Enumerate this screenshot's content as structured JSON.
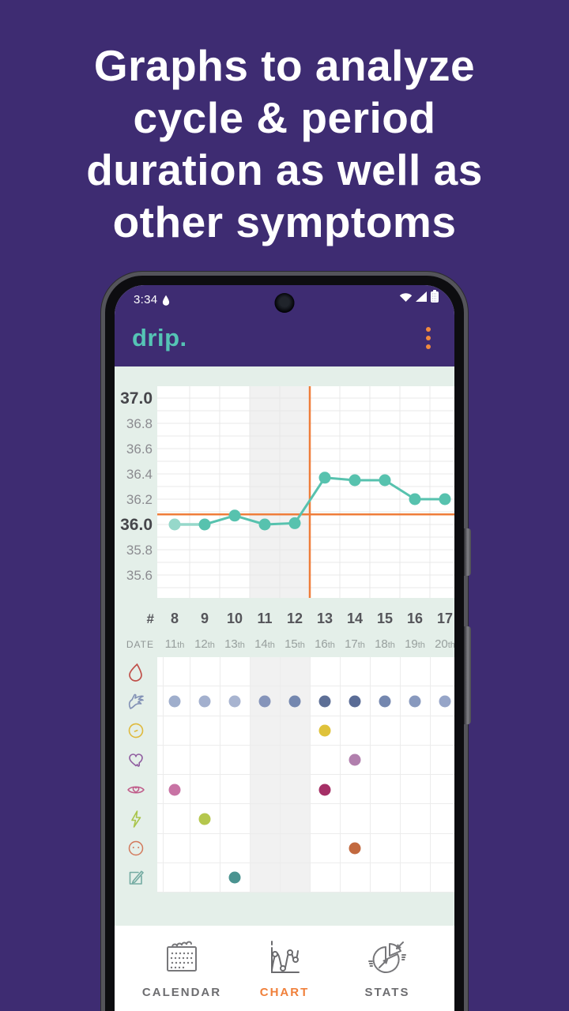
{
  "colors": {
    "background_purple": "#3E2C72",
    "accent_teal": "#55C4B5",
    "accent_orange": "#F0803B",
    "screen_mint": "#E4EFE9"
  },
  "headline": {
    "lines": [
      "Graphs to analyze",
      "cycle & period",
      "duration as well as",
      "other symptoms"
    ]
  },
  "status_bar": {
    "time": "3:34",
    "icons": [
      "notification-drop-icon",
      "wifi-icon",
      "cellular-signal-icon",
      "battery-icon"
    ]
  },
  "app_bar": {
    "title": "drip.",
    "menu_icon": "kebab-menu-icon"
  },
  "chart_data": {
    "type": "line",
    "x": [
      8,
      9,
      10,
      11,
      12,
      13,
      14,
      15,
      16,
      17
    ],
    "x_number_label": "#",
    "x_date_label": "DATE",
    "x_dates": [
      "11th",
      "12th",
      "13th",
      "14th",
      "15th",
      "16th",
      "17th",
      "18th",
      "19th",
      "20th"
    ],
    "series": [
      {
        "name": "temperature",
        "color": "#57C2AE",
        "faded_color": "#96D8CA",
        "values": [
          36.0,
          36.0,
          36.07,
          36.0,
          36.01,
          36.37,
          36.35,
          36.35,
          36.2,
          36.2
        ]
      }
    ],
    "yticks": [
      37.0,
      36.8,
      36.6,
      36.4,
      36.2,
      36.0,
      35.8,
      35.6
    ],
    "bold_yticks": [
      37.0,
      36.0
    ],
    "ylim": [
      35.45,
      37.1
    ],
    "grid": true,
    "coverline": 36.08,
    "marker_color": "#EF7D3A",
    "vertical_marker_after_day": 12,
    "highlighted_days": [
      11,
      12
    ],
    "faded_first_point": true
  },
  "symptom_grid": {
    "rows": [
      {
        "name": "bleeding",
        "icon": "drop-icon",
        "icon_color": "#C0504A",
        "dots": []
      },
      {
        "name": "mucus",
        "icon": "hand-icon",
        "icon_color": "#8291B5",
        "dots": [
          {
            "day": 8,
            "color": "#9FAECC"
          },
          {
            "day": 9,
            "color": "#A3B0CE"
          },
          {
            "day": 10,
            "color": "#A8B4D0"
          },
          {
            "day": 11,
            "color": "#8594BA"
          },
          {
            "day": 12,
            "color": "#7487AF"
          },
          {
            "day": 13,
            "color": "#5D6F96"
          },
          {
            "day": 14,
            "color": "#5A6C96"
          },
          {
            "day": 15,
            "color": "#7487AF"
          },
          {
            "day": 16,
            "color": "#8899BE"
          },
          {
            "day": 17,
            "color": "#96A5C8"
          }
        ]
      },
      {
        "name": "cervix",
        "icon": "circle-icon",
        "icon_color": "#DFB93C",
        "dots": [
          {
            "day": 13,
            "color": "#DFC23A"
          }
        ]
      },
      {
        "name": "desire",
        "icon": "dripping-heart-icon",
        "icon_color": "#8F5C9F",
        "dots": [
          {
            "day": 14,
            "color": "#B17FAD"
          }
        ]
      },
      {
        "name": "sex",
        "icon": "eye-heart-icon",
        "icon_color": "#C05C8A",
        "dots": [
          {
            "day": 8,
            "color": "#C873A4"
          },
          {
            "day": 13,
            "color": "#A52F66"
          }
        ]
      },
      {
        "name": "pain",
        "icon": "lightning-icon",
        "icon_color": "#A9C54C",
        "dots": [
          {
            "day": 9,
            "color": "#B5C74D"
          }
        ]
      },
      {
        "name": "mood",
        "icon": "face-icon",
        "icon_color": "#D3795B",
        "dots": [
          {
            "day": 14,
            "color": "#C2693F"
          }
        ]
      },
      {
        "name": "note",
        "icon": "note-icon",
        "icon_color": "#74ABA2",
        "dots": [
          {
            "day": 10,
            "color": "#4A9390"
          }
        ]
      }
    ]
  },
  "bottom_nav": {
    "active_color": "#F0803B",
    "items": [
      {
        "label": "CALENDAR",
        "icon": "calendar-icon",
        "active": false
      },
      {
        "label": "CHART",
        "icon": "chart-icon",
        "active": true
      },
      {
        "label": "STATS",
        "icon": "stats-icon",
        "active": false
      }
    ]
  }
}
